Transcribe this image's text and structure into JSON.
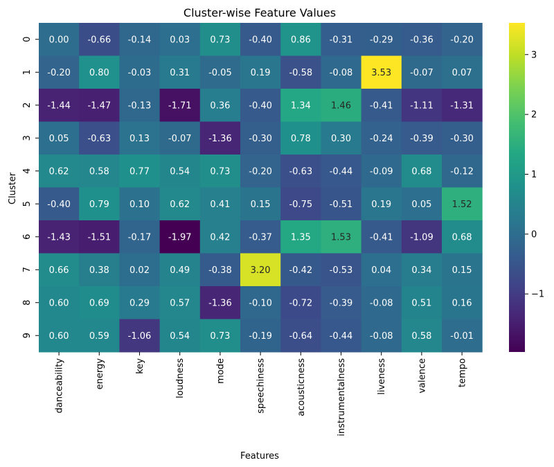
{
  "chart_data": {
    "type": "heatmap",
    "title": "Cluster-wise Feature Values",
    "xlabel": "Features",
    "ylabel": "Cluster",
    "columns": [
      "danceability",
      "energy",
      "key",
      "loudness",
      "mode",
      "speechiness",
      "acousticness",
      "instrumentalness",
      "liveness",
      "valence",
      "tempo"
    ],
    "rows": [
      "0",
      "1",
      "2",
      "3",
      "4",
      "5",
      "6",
      "7",
      "8",
      "9"
    ],
    "values": [
      [
        0.0,
        -0.66,
        -0.14,
        0.03,
        0.73,
        -0.4,
        0.86,
        -0.31,
        -0.29,
        -0.36,
        -0.2
      ],
      [
        -0.2,
        0.8,
        -0.03,
        0.31,
        -0.05,
        0.19,
        -0.58,
        -0.08,
        3.53,
        -0.07,
        0.07
      ],
      [
        -1.44,
        -1.47,
        -0.13,
        -1.71,
        0.36,
        -0.4,
        1.34,
        1.46,
        -0.41,
        -1.11,
        -1.31
      ],
      [
        0.05,
        -0.63,
        0.13,
        -0.07,
        -1.36,
        -0.3,
        0.78,
        0.3,
        -0.24,
        -0.39,
        -0.3
      ],
      [
        0.62,
        0.58,
        0.77,
        0.54,
        0.73,
        -0.2,
        -0.63,
        -0.44,
        -0.09,
        0.68,
        -0.12
      ],
      [
        -0.4,
        0.79,
        0.1,
        0.62,
        0.41,
        0.15,
        -0.75,
        -0.51,
        0.19,
        0.05,
        1.52
      ],
      [
        -1.43,
        -1.51,
        -0.17,
        -1.97,
        0.42,
        -0.37,
        1.35,
        1.53,
        -0.41,
        -1.09,
        0.68
      ],
      [
        0.66,
        0.38,
        0.02,
        0.49,
        -0.38,
        3.2,
        -0.42,
        -0.53,
        0.04,
        0.34,
        0.15
      ],
      [
        0.6,
        0.69,
        0.29,
        0.57,
        -1.36,
        -0.1,
        -0.72,
        -0.39,
        -0.08,
        0.51,
        0.16
      ],
      [
        0.6,
        0.59,
        -1.06,
        0.54,
        0.73,
        -0.19,
        -0.64,
        -0.44,
        -0.08,
        0.58,
        -0.01
      ]
    ],
    "colorbar": {
      "colormap": "viridis",
      "vmin": -1.97,
      "vmax": 3.53,
      "ticks": [
        -1,
        0,
        1,
        2,
        3
      ],
      "tick_labels": [
        "−1",
        "0",
        "1",
        "2",
        "3"
      ]
    },
    "annotate": true,
    "value_format": "2dp"
  }
}
